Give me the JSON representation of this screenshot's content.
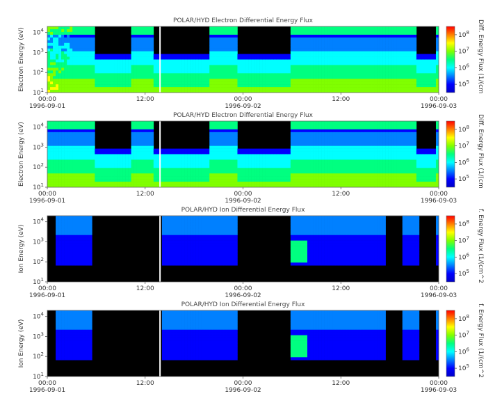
{
  "chart_data": [
    {
      "type": "heatmap",
      "title": "POLAR/HYD  Electron Differential Energy Flux",
      "ylabel": "Electron Energy (eV)",
      "colorbar_label": "Diff. Energy Flux (1/(cm",
      "yscale": "log",
      "ylim": [
        10,
        20000
      ],
      "y_ticks": [
        {
          "base": "10",
          "exp": "1"
        },
        {
          "base": "10",
          "exp": "2"
        },
        {
          "base": "10",
          "exp": "3"
        },
        {
          "base": "10",
          "exp": "4"
        }
      ],
      "colorbar_ticks": [
        {
          "base": "10",
          "exp": "5"
        },
        {
          "base": "10",
          "exp": "6"
        },
        {
          "base": "10",
          "exp": "7"
        },
        {
          "base": "10",
          "exp": "8"
        }
      ],
      "x_ticks": [
        {
          "time": "00:00",
          "date": "1996-09-01"
        },
        {
          "time": "12:00",
          "date": ""
        },
        {
          "time": "00:00",
          "date": "1996-09-02"
        },
        {
          "time": "12:00",
          "date": ""
        },
        {
          "time": "00:00",
          "date": "1996-09-03"
        }
      ]
    },
    {
      "type": "heatmap",
      "title": "POLAR/HYD  Electron Differential Energy Flux",
      "ylabel": "Electron Energy (eV)",
      "colorbar_label": "Diff. Energy Flux (1/(cm",
      "yscale": "log",
      "ylim": [
        10,
        20000
      ],
      "y_ticks": [
        {
          "base": "10",
          "exp": "1"
        },
        {
          "base": "10",
          "exp": "2"
        },
        {
          "base": "10",
          "exp": "3"
        },
        {
          "base": "10",
          "exp": "4"
        }
      ],
      "colorbar_ticks": [
        {
          "base": "10",
          "exp": "5"
        },
        {
          "base": "10",
          "exp": "6"
        },
        {
          "base": "10",
          "exp": "7"
        },
        {
          "base": "10",
          "exp": "8"
        }
      ],
      "x_ticks": [
        {
          "time": "00:00",
          "date": "1996-09-01"
        },
        {
          "time": "12:00",
          "date": ""
        },
        {
          "time": "00:00",
          "date": "1996-09-02"
        },
        {
          "time": "12:00",
          "date": ""
        },
        {
          "time": "00:00",
          "date": "1996-09-03"
        }
      ]
    },
    {
      "type": "heatmap",
      "title": "POLAR/HYD  Ion Differential Energy Flux",
      "ylabel": "Ion Energy (eV)",
      "colorbar_label": "f. Energy Flux (1/(cm^2",
      "yscale": "log",
      "ylim": [
        10,
        20000
      ],
      "y_ticks": [
        {
          "base": "10",
          "exp": "1"
        },
        {
          "base": "10",
          "exp": "2"
        },
        {
          "base": "10",
          "exp": "3"
        },
        {
          "base": "10",
          "exp": "4"
        }
      ],
      "colorbar_ticks": [
        {
          "base": "10",
          "exp": "5"
        },
        {
          "base": "10",
          "exp": "6"
        },
        {
          "base": "10",
          "exp": "7"
        },
        {
          "base": "10",
          "exp": "8"
        }
      ],
      "x_ticks": [
        {
          "time": "00:00",
          "date": "1996-09-01"
        },
        {
          "time": "12:00",
          "date": ""
        },
        {
          "time": "00:00",
          "date": "1996-09-02"
        },
        {
          "time": "12:00",
          "date": ""
        },
        {
          "time": "00:00",
          "date": "1996-09-03"
        }
      ]
    },
    {
      "type": "heatmap",
      "title": "POLAR/HYD  Ion Differential Energy Flux",
      "ylabel": "Ion Energy (eV)",
      "colorbar_label": "f. Energy Flux (1/(cm^2",
      "yscale": "log",
      "ylim": [
        10,
        20000
      ],
      "y_ticks": [
        {
          "base": "10",
          "exp": "1"
        },
        {
          "base": "10",
          "exp": "2"
        },
        {
          "base": "10",
          "exp": "3"
        },
        {
          "base": "10",
          "exp": "4"
        }
      ],
      "colorbar_ticks": [
        {
          "base": "10",
          "exp": "5"
        },
        {
          "base": "10",
          "exp": "6"
        },
        {
          "base": "10",
          "exp": "7"
        },
        {
          "base": "10",
          "exp": "8"
        }
      ],
      "x_ticks": [
        {
          "time": "00:00",
          "date": "1996-09-01"
        },
        {
          "time": "12:00",
          "date": ""
        },
        {
          "time": "00:00",
          "date": "1996-09-02"
        },
        {
          "time": "12:00",
          "date": ""
        },
        {
          "time": "00:00",
          "date": "1996-09-03"
        }
      ]
    }
  ],
  "colormap": [
    "#0000c8",
    "#0000ff",
    "#0080ff",
    "#00ffff",
    "#00ff80",
    "#80ff00",
    "#ffff00",
    "#ff8000",
    "#ff0000"
  ],
  "background_color": "#000000"
}
